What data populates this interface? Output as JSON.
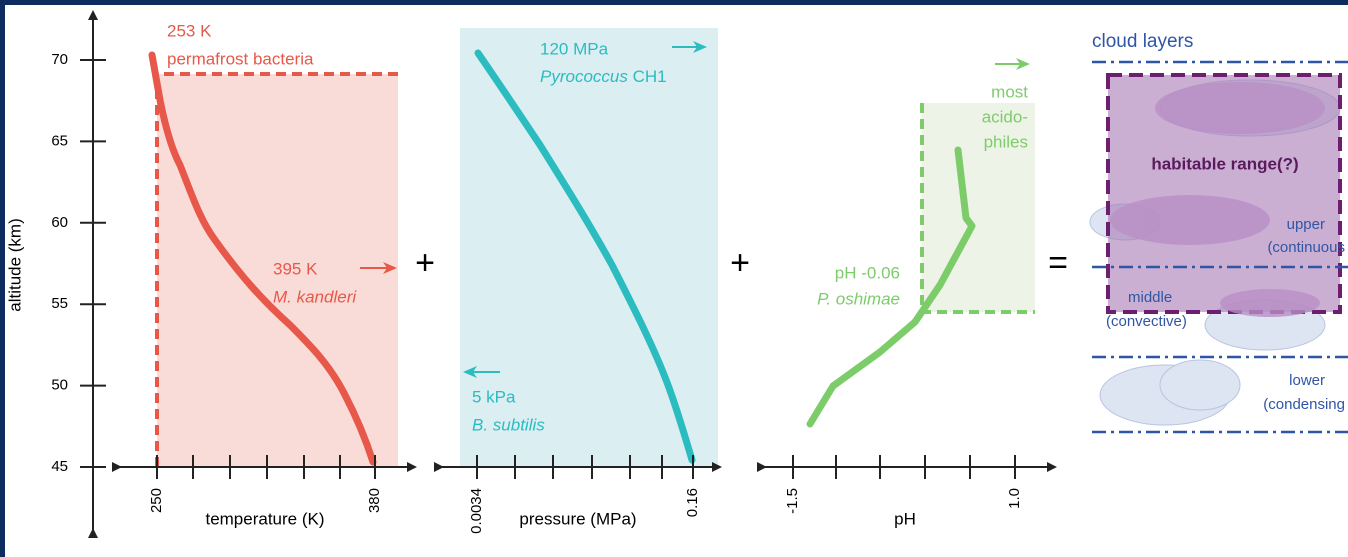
{
  "altitude_axis": {
    "label": "altitude (km)",
    "ticks": [
      70,
      65,
      60,
      55,
      50,
      45
    ]
  },
  "temperature_panel": {
    "axis_label": "temperature (K)",
    "tick_labels": [
      "250",
      "380"
    ],
    "upper_limit": {
      "value": "253 K",
      "organism": "permafrost bacteria"
    },
    "lower_limit": {
      "value": "395 K",
      "organism": "M. kandleri"
    }
  },
  "pressure_panel": {
    "axis_label": "pressure (MPa)",
    "tick_labels": [
      "0.0034",
      "0.16"
    ],
    "upper_limit": {
      "value": "120 MPa",
      "organism": "Pyrococcus",
      "strain": "CH1"
    },
    "lower_limit": {
      "value": "5 kPa",
      "organism": "B. subtilis"
    }
  },
  "ph_panel": {
    "axis_label": "pH",
    "tick_labels": [
      "-1.5",
      "1.0"
    ],
    "upper_limit": {
      "lines": [
        "most",
        "acido-",
        "philes"
      ]
    },
    "lower_limit": {
      "value": "pH -0.06",
      "organism": "P. oshimae"
    }
  },
  "operators": [
    "+",
    "+",
    "="
  ],
  "cloud_panel": {
    "title": "cloud layers",
    "habitable": "habitable range(?)",
    "layers": [
      {
        "name": "upper",
        "type": "(continuous"
      },
      {
        "name": "middle",
        "type": "(convective)"
      },
      {
        "name": "lower",
        "type": "(condensing"
      }
    ]
  }
}
